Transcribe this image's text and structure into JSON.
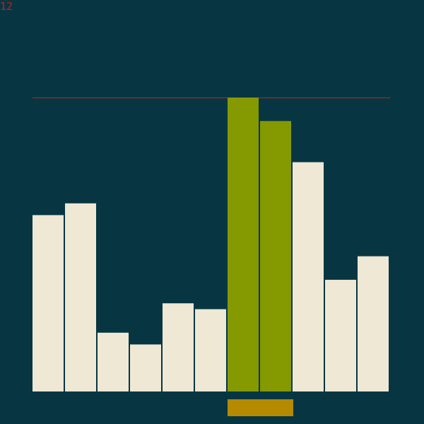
{
  "counter": "12",
  "colors": {
    "background": "#073642",
    "bar_default": "#eee8d5",
    "bar_active": "#859900",
    "selection_marker": "#b58900",
    "reference_line": "#c0201e",
    "counter_text": "#c0201e"
  },
  "bars": [
    {
      "value": 60,
      "state": "default"
    },
    {
      "value": 64,
      "state": "default"
    },
    {
      "value": 20,
      "state": "default"
    },
    {
      "value": 16,
      "state": "default"
    },
    {
      "value": 30,
      "state": "default"
    },
    {
      "value": 28,
      "state": "default"
    },
    {
      "value": 100,
      "state": "active"
    },
    {
      "value": 92,
      "state": "active"
    },
    {
      "value": 78,
      "state": "default"
    },
    {
      "value": 38,
      "state": "default"
    },
    {
      "value": 46,
      "state": "default"
    }
  ],
  "max_value": 100,
  "reference_value": 100,
  "selection": {
    "start_index": 6,
    "end_index": 7
  }
}
